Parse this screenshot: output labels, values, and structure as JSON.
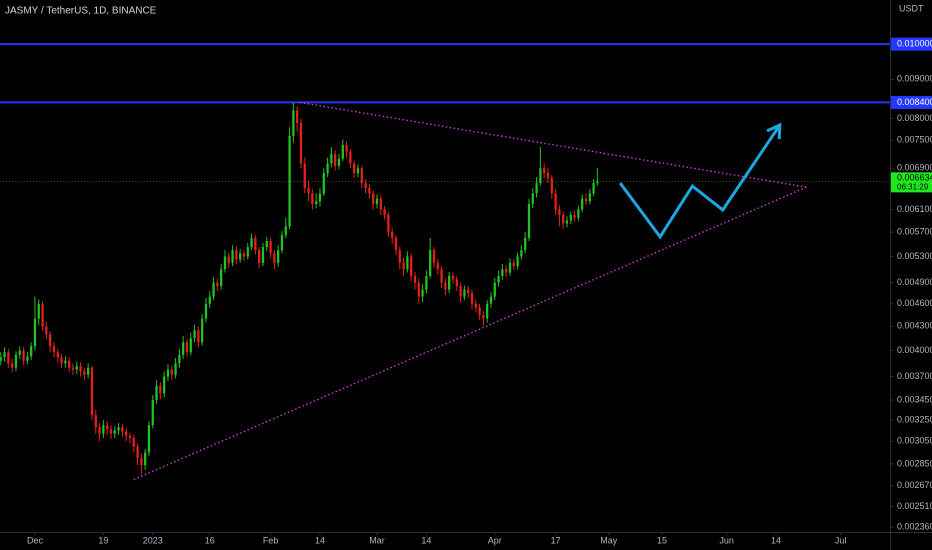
{
  "chart_data": {
    "type": "candlestick",
    "title": "JASMY / TetherUS, 1D, BINANCE",
    "y_unit": "USDT",
    "up_color": "#22c322",
    "down_color": "#e8201c",
    "ylog": true,
    "grid": false,
    "xlim": [
      -9.2,
      225
    ],
    "ylim": [
      0.002325,
      0.01141
    ],
    "xticks": [
      {
        "value": 0,
        "label": "Dec"
      },
      {
        "value": 18,
        "label": "19"
      },
      {
        "value": 31,
        "label": "2023"
      },
      {
        "value": 46,
        "label": "16"
      },
      {
        "value": 62,
        "label": "Feb"
      },
      {
        "value": 75,
        "label": "14"
      },
      {
        "value": 90,
        "label": "Mar"
      },
      {
        "value": 103,
        "label": "14"
      },
      {
        "value": 121,
        "label": "Apr"
      },
      {
        "value": 137,
        "label": "17"
      },
      {
        "value": 151,
        "label": "May"
      },
      {
        "value": 165,
        "label": "15"
      },
      {
        "value": 182,
        "label": "Jun"
      },
      {
        "value": 195,
        "label": "14"
      },
      {
        "value": 212,
        "label": "Jul"
      }
    ],
    "yticks": [
      {
        "value": 0.00236,
        "label": "0.002360"
      },
      {
        "value": 0.00251,
        "label": "0.002510"
      },
      {
        "value": 0.00267,
        "label": "0.002670"
      },
      {
        "value": 0.00285,
        "label": "0.002850"
      },
      {
        "value": 0.00305,
        "label": "0.003050"
      },
      {
        "value": 0.00325,
        "label": "0.003250"
      },
      {
        "value": 0.00345,
        "label": "0.003450"
      },
      {
        "value": 0.0037,
        "label": "0.003700"
      },
      {
        "value": 0.004,
        "label": "0.004000"
      },
      {
        "value": 0.0043,
        "label": "0.004300"
      },
      {
        "value": 0.0046,
        "label": "0.004600"
      },
      {
        "value": 0.0049,
        "label": "0.004900"
      },
      {
        "value": 0.0053,
        "label": "0.005300"
      },
      {
        "value": 0.0057,
        "label": "0.005700"
      },
      {
        "value": 0.0061,
        "label": "0.006100"
      },
      {
        "value": 0.0069,
        "label": "0.006900"
      },
      {
        "value": 0.0075,
        "label": "0.007500"
      },
      {
        "value": 0.008,
        "label": "0.008000"
      },
      {
        "value": 0.009,
        "label": "0.009000"
      }
    ],
    "hlines": [
      {
        "value": 0.01,
        "label": "0.010000",
        "color": "#2437ff"
      },
      {
        "value": 0.0084,
        "label": "0.008400",
        "color": "#2437ff"
      }
    ],
    "last_price": {
      "value": 0.006634,
      "label": "0.006634",
      "countdown": "06:31:29",
      "color": "#1ee81e"
    },
    "drawings": [
      {
        "kind": "dotted",
        "color": "#d63fe0",
        "x": [
          69.7,
          203
        ],
        "y": [
          0.0084,
          0.00652
        ]
      },
      {
        "kind": "dotted",
        "color": "#d63fe0",
        "x": [
          26,
          203
        ],
        "y": [
          0.00272,
          0.00652
        ]
      },
      {
        "kind": "arrow",
        "color": "#1ea7e1",
        "x": [
          154,
          164.5,
          173,
          181,
          196
        ],
        "y": [
          0.0066,
          0.00562,
          0.00654,
          0.00609,
          0.00785
        ]
      }
    ],
    "x": [
      -9,
      -8,
      -7,
      -6,
      -5,
      -4,
      -3,
      -2,
      -1,
      0,
      1,
      2,
      3,
      4,
      5,
      6,
      7,
      8,
      9,
      10,
      11,
      12,
      13,
      14,
      15,
      16,
      17,
      18,
      19,
      20,
      21,
      22,
      23,
      24,
      25,
      26,
      27,
      28,
      29,
      30,
      31,
      32,
      33,
      34,
      35,
      36,
      37,
      38,
      39,
      40,
      41,
      42,
      43,
      44,
      45,
      46,
      47,
      48,
      49,
      50,
      51,
      52,
      53,
      54,
      55,
      56,
      57,
      58,
      59,
      60,
      61,
      62,
      63,
      64,
      65,
      66,
      67,
      68,
      69,
      70,
      71,
      72,
      73,
      74,
      75,
      76,
      77,
      78,
      79,
      80,
      81,
      82,
      83,
      84,
      85,
      86,
      87,
      88,
      89,
      90,
      91,
      92,
      93,
      94,
      95,
      96,
      97,
      98,
      99,
      100,
      101,
      102,
      103,
      104,
      105,
      106,
      107,
      108,
      109,
      110,
      111,
      112,
      113,
      114,
      115,
      116,
      117,
      118,
      119,
      120,
      121,
      122,
      123,
      124,
      125,
      126,
      127,
      128,
      129,
      130,
      131,
      132,
      133,
      134,
      135,
      136,
      137,
      138,
      139,
      140,
      141,
      142,
      143,
      144,
      145,
      146,
      147,
      148
    ],
    "candles": [
      [
        0.00388,
        0.00398,
        0.00383,
        0.00392
      ],
      [
        0.00392,
        0.00404,
        0.00387,
        0.00398
      ],
      [
        0.00398,
        0.00402,
        0.0038,
        0.00385
      ],
      [
        0.00385,
        0.0039,
        0.00375,
        0.0038
      ],
      [
        0.0038,
        0.00399,
        0.00376,
        0.00395
      ],
      [
        0.00395,
        0.00405,
        0.0039,
        0.004
      ],
      [
        0.004,
        0.00404,
        0.00383,
        0.00388
      ],
      [
        0.00388,
        0.00398,
        0.00384,
        0.00393
      ],
      [
        0.00393,
        0.0041,
        0.00389,
        0.00405
      ],
      [
        0.00405,
        0.0047,
        0.004,
        0.0044
      ],
      [
        0.0044,
        0.00466,
        0.00432,
        0.0046
      ],
      [
        0.0046,
        0.00464,
        0.00424,
        0.0043
      ],
      [
        0.0043,
        0.00436,
        0.00414,
        0.0042
      ],
      [
        0.0042,
        0.00424,
        0.00398,
        0.00405
      ],
      [
        0.00405,
        0.0041,
        0.00392,
        0.00398
      ],
      [
        0.00398,
        0.00402,
        0.00386,
        0.00392
      ],
      [
        0.00392,
        0.00396,
        0.0038,
        0.00385
      ],
      [
        0.00385,
        0.00393,
        0.0038,
        0.00388
      ],
      [
        0.00388,
        0.00392,
        0.00375,
        0.0038
      ],
      [
        0.0038,
        0.00385,
        0.00372,
        0.00378
      ],
      [
        0.00378,
        0.00387,
        0.00373,
        0.00382
      ],
      [
        0.00382,
        0.00386,
        0.0037,
        0.00376
      ],
      [
        0.00376,
        0.0038,
        0.00366,
        0.00372
      ],
      [
        0.00372,
        0.00385,
        0.00368,
        0.0038
      ],
      [
        0.0038,
        0.00382,
        0.00325,
        0.0033
      ],
      [
        0.0033,
        0.00335,
        0.00312,
        0.00318
      ],
      [
        0.00318,
        0.00322,
        0.00305,
        0.00312
      ],
      [
        0.00312,
        0.00325,
        0.00308,
        0.0032
      ],
      [
        0.0032,
        0.00324,
        0.00311,
        0.00316
      ],
      [
        0.00316,
        0.0032,
        0.00307,
        0.00312
      ],
      [
        0.00312,
        0.00319,
        0.00308,
        0.00315
      ],
      [
        0.00315,
        0.00322,
        0.00311,
        0.00318
      ],
      [
        0.00318,
        0.00321,
        0.00309,
        0.00314
      ],
      [
        0.00314,
        0.00317,
        0.00305,
        0.0031
      ],
      [
        0.0031,
        0.00313,
        0.00303,
        0.00308
      ],
      [
        0.00308,
        0.00311,
        0.00295,
        0.003
      ],
      [
        0.003,
        0.00303,
        0.00284,
        0.0029
      ],
      [
        0.0029,
        0.00294,
        0.00276,
        0.00284
      ],
      [
        0.00284,
        0.00298,
        0.0028,
        0.00295
      ],
      [
        0.00295,
        0.00324,
        0.00292,
        0.0032
      ],
      [
        0.0032,
        0.0035,
        0.00317,
        0.00345
      ],
      [
        0.00345,
        0.00366,
        0.00341,
        0.0036
      ],
      [
        0.0036,
        0.00364,
        0.00346,
        0.00352
      ],
      [
        0.00352,
        0.00376,
        0.00348,
        0.0037
      ],
      [
        0.0037,
        0.00384,
        0.00365,
        0.00378
      ],
      [
        0.00378,
        0.00382,
        0.00366,
        0.00372
      ],
      [
        0.00372,
        0.00391,
        0.00368,
        0.00385
      ],
      [
        0.00385,
        0.00402,
        0.0038,
        0.00395
      ],
      [
        0.00395,
        0.00418,
        0.0039,
        0.0041
      ],
      [
        0.0041,
        0.00414,
        0.00392,
        0.00398
      ],
      [
        0.00398,
        0.00422,
        0.00394,
        0.00415
      ],
      [
        0.00415,
        0.00432,
        0.0041,
        0.00425
      ],
      [
        0.00425,
        0.0043,
        0.00404,
        0.0041
      ],
      [
        0.0041,
        0.00446,
        0.00406,
        0.0044
      ],
      [
        0.0044,
        0.00468,
        0.00435,
        0.0046
      ],
      [
        0.0046,
        0.00478,
        0.00454,
        0.0047
      ],
      [
        0.0047,
        0.00498,
        0.00465,
        0.0049
      ],
      [
        0.0049,
        0.00496,
        0.00478,
        0.00485
      ],
      [
        0.00485,
        0.00518,
        0.0048,
        0.0051
      ],
      [
        0.0051,
        0.0054,
        0.00505,
        0.0053
      ],
      [
        0.0053,
        0.00536,
        0.00512,
        0.0052
      ],
      [
        0.0052,
        0.00548,
        0.00515,
        0.0054
      ],
      [
        0.0054,
        0.00546,
        0.00518,
        0.00525
      ],
      [
        0.00525,
        0.00542,
        0.0052,
        0.00535
      ],
      [
        0.00535,
        0.0054,
        0.00523,
        0.0053
      ],
      [
        0.0053,
        0.00552,
        0.00525,
        0.00545
      ],
      [
        0.00545,
        0.00568,
        0.0054,
        0.0056
      ],
      [
        0.0056,
        0.00565,
        0.00533,
        0.0054
      ],
      [
        0.0054,
        0.00545,
        0.00512,
        0.0052
      ],
      [
        0.0052,
        0.00552,
        0.00515,
        0.00545
      ],
      [
        0.00545,
        0.00562,
        0.00538,
        0.00555
      ],
      [
        0.00555,
        0.0056,
        0.00528,
        0.00535
      ],
      [
        0.00535,
        0.0054,
        0.0051,
        0.0052
      ],
      [
        0.0052,
        0.00548,
        0.00514,
        0.0054
      ],
      [
        0.0054,
        0.00572,
        0.00535,
        0.00565
      ],
      [
        0.00565,
        0.00595,
        0.0056,
        0.0058
      ],
      [
        0.0058,
        0.0078,
        0.00575,
        0.0076
      ],
      [
        0.0076,
        0.0084,
        0.00745,
        0.0082
      ],
      [
        0.0082,
        0.0083,
        0.0077,
        0.0079
      ],
      [
        0.0079,
        0.008,
        0.0069,
        0.007
      ],
      [
        0.007,
        0.00712,
        0.0064,
        0.0065
      ],
      [
        0.0065,
        0.00665,
        0.00625,
        0.0064
      ],
      [
        0.0064,
        0.00648,
        0.0061,
        0.0062
      ],
      [
        0.0062,
        0.0064,
        0.00612,
        0.00625
      ],
      [
        0.00625,
        0.0065,
        0.00615,
        0.0064
      ],
      [
        0.0064,
        0.0069,
        0.00635,
        0.0068
      ],
      [
        0.0068,
        0.00712,
        0.00672,
        0.007
      ],
      [
        0.007,
        0.00735,
        0.00692,
        0.0072
      ],
      [
        0.0072,
        0.00728,
        0.00685,
        0.00695
      ],
      [
        0.00695,
        0.0072,
        0.00688,
        0.0071
      ],
      [
        0.0071,
        0.00752,
        0.00705,
        0.0074
      ],
      [
        0.0074,
        0.00748,
        0.00712,
        0.00725
      ],
      [
        0.00725,
        0.0073,
        0.0069,
        0.007
      ],
      [
        0.007,
        0.00706,
        0.0067,
        0.0068
      ],
      [
        0.0068,
        0.00698,
        0.00672,
        0.0069
      ],
      [
        0.0069,
        0.00695,
        0.0065,
        0.0066
      ],
      [
        0.0066,
        0.00668,
        0.0064,
        0.0065
      ],
      [
        0.0065,
        0.00658,
        0.0063,
        0.0064
      ],
      [
        0.0064,
        0.00645,
        0.0061,
        0.0062
      ],
      [
        0.0062,
        0.00638,
        0.00612,
        0.0063
      ],
      [
        0.0063,
        0.00636,
        0.006,
        0.0061
      ],
      [
        0.0061,
        0.00616,
        0.00592,
        0.006
      ],
      [
        0.006,
        0.00605,
        0.00562,
        0.0057
      ],
      [
        0.0057,
        0.00578,
        0.0055,
        0.0056
      ],
      [
        0.0056,
        0.00565,
        0.00532,
        0.0054
      ],
      [
        0.0054,
        0.00546,
        0.0051,
        0.0052
      ],
      [
        0.0052,
        0.00528,
        0.005,
        0.0051
      ],
      [
        0.0051,
        0.00538,
        0.00505,
        0.0053
      ],
      [
        0.0053,
        0.00535,
        0.00492,
        0.005
      ],
      [
        0.005,
        0.00506,
        0.0048,
        0.0049
      ],
      [
        0.0049,
        0.00496,
        0.0046,
        0.0047
      ],
      [
        0.0047,
        0.00488,
        0.00462,
        0.0048
      ],
      [
        0.0048,
        0.00508,
        0.00475,
        0.005
      ],
      [
        0.005,
        0.0056,
        0.00496,
        0.0054
      ],
      [
        0.0054,
        0.00545,
        0.00512,
        0.0052
      ],
      [
        0.0052,
        0.00526,
        0.00502,
        0.0051
      ],
      [
        0.0051,
        0.00515,
        0.00482,
        0.0049
      ],
      [
        0.0049,
        0.00496,
        0.00472,
        0.0048
      ],
      [
        0.0048,
        0.00506,
        0.00475,
        0.005
      ],
      [
        0.005,
        0.00505,
        0.00488,
        0.00495
      ],
      [
        0.00495,
        0.005,
        0.00478,
        0.00485
      ],
      [
        0.00485,
        0.0049,
        0.00462,
        0.0047
      ],
      [
        0.0047,
        0.00486,
        0.00465,
        0.0048
      ],
      [
        0.0048,
        0.00485,
        0.00468,
        0.00475
      ],
      [
        0.00475,
        0.0048,
        0.00452,
        0.0046
      ],
      [
        0.0046,
        0.00466,
        0.00448,
        0.00455
      ],
      [
        0.00455,
        0.0046,
        0.00438,
        0.00445
      ],
      [
        0.00445,
        0.0045,
        0.0043,
        0.0044
      ],
      [
        0.0044,
        0.00465,
        0.00435,
        0.0046
      ],
      [
        0.0046,
        0.00476,
        0.00455,
        0.0047
      ],
      [
        0.0047,
        0.00497,
        0.00465,
        0.0049
      ],
      [
        0.0049,
        0.00508,
        0.00484,
        0.005
      ],
      [
        0.005,
        0.00518,
        0.00494,
        0.0051
      ],
      [
        0.0051,
        0.00516,
        0.00498,
        0.00505
      ],
      [
        0.00505,
        0.00527,
        0.005,
        0.0052
      ],
      [
        0.0052,
        0.00526,
        0.00508,
        0.00515
      ],
      [
        0.00515,
        0.00536,
        0.0051,
        0.0053
      ],
      [
        0.0053,
        0.00548,
        0.00525,
        0.0054
      ],
      [
        0.0054,
        0.0057,
        0.00535,
        0.0056
      ],
      [
        0.0056,
        0.0063,
        0.00555,
        0.0062
      ],
      [
        0.0062,
        0.0065,
        0.00612,
        0.0064
      ],
      [
        0.0064,
        0.00672,
        0.00632,
        0.0066
      ],
      [
        0.0066,
        0.00735,
        0.00655,
        0.0069
      ],
      [
        0.0069,
        0.007,
        0.0067,
        0.0068
      ],
      [
        0.0068,
        0.0069,
        0.0066,
        0.0067
      ],
      [
        0.0067,
        0.00676,
        0.0063,
        0.0064
      ],
      [
        0.0064,
        0.00648,
        0.006,
        0.0061
      ],
      [
        0.0061,
        0.00618,
        0.0058,
        0.006
      ],
      [
        0.006,
        0.00606,
        0.00575,
        0.00585
      ],
      [
        0.00585,
        0.00598,
        0.00578,
        0.0059
      ],
      [
        0.0059,
        0.00606,
        0.00584,
        0.006
      ],
      [
        0.006,
        0.00608,
        0.00588,
        0.00595
      ],
      [
        0.00595,
        0.00616,
        0.0059,
        0.0061
      ],
      [
        0.0061,
        0.00638,
        0.00605,
        0.0063
      ],
      [
        0.0063,
        0.0064,
        0.00618,
        0.00625
      ],
      [
        0.00625,
        0.00648,
        0.0062,
        0.0064
      ],
      [
        0.0064,
        0.00668,
        0.00635,
        0.0066
      ],
      [
        0.0066,
        0.0069,
        0.00655,
        0.006634
      ]
    ]
  }
}
